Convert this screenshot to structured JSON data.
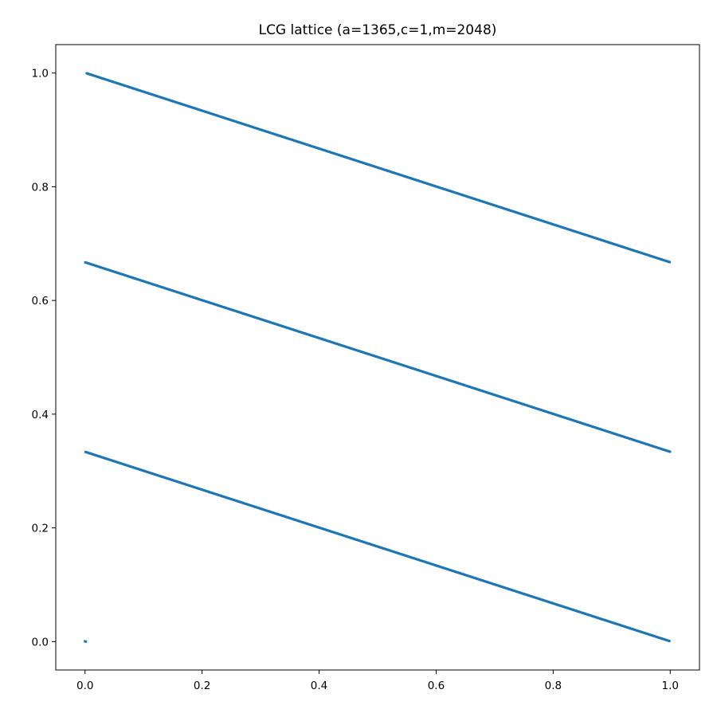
{
  "chart_data": {
    "type": "scatter",
    "title": "LCG lattice (a=1365,c=1,m=2048)",
    "xlabel": "",
    "ylabel": "",
    "xlim": [
      -0.05,
      1.05
    ],
    "ylim": [
      -0.05,
      1.05
    ],
    "x_ticks": [
      "0.0",
      "0.2",
      "0.4",
      "0.6",
      "0.8",
      "1.0"
    ],
    "y_ticks": [
      "0.0",
      "0.2",
      "0.4",
      "0.6",
      "0.8",
      "1.0"
    ],
    "grid": false,
    "legend": "none",
    "marker_color": "#1f77b4",
    "generator": {
      "a": 1365,
      "c": 1,
      "m": 2048
    },
    "series": [
      {
        "points_description_lines": [
          {
            "x_range": [
              0.0,
              1.0
            ],
            "y_range": [
              1.0,
              0.667
            ]
          },
          {
            "x_range": [
              0.0,
              1.0
            ],
            "y_range": [
              0.667,
              0.333
            ]
          },
          {
            "x_range": [
              0.0,
              1.0
            ],
            "y_range": [
              0.333,
              0.0
            ]
          }
        ],
        "isolated_points": [
          {
            "x": 0.0,
            "y": 0.0
          }
        ]
      }
    ]
  }
}
